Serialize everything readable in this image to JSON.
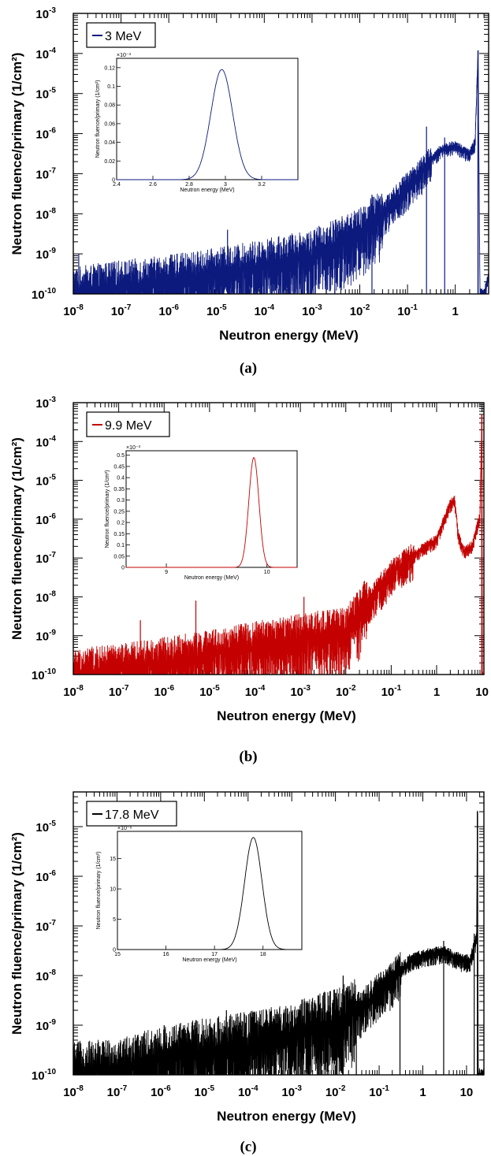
{
  "chart_data": [
    {
      "type": "line",
      "caption": "(a)",
      "xlabel": "Neutron energy (MeV)",
      "ylabel": "Neutron fluence/primary (1/cm²)",
      "xscale": "log",
      "yscale": "log",
      "xlim": [
        1e-08,
        5
      ],
      "ylim": [
        1e-10,
        0.001
      ],
      "x_tick_labels": [
        {
          "base": "10",
          "exp": "-8",
          "value": 1e-08
        },
        {
          "base": "10",
          "exp": "-7",
          "value": 1e-07
        },
        {
          "base": "10",
          "exp": "-6",
          "value": 1e-06
        },
        {
          "base": "10",
          "exp": "-5",
          "value": 1e-05
        },
        {
          "base": "10",
          "exp": "-4",
          "value": 0.0001
        },
        {
          "base": "10",
          "exp": "-3",
          "value": 0.001
        },
        {
          "base": "10",
          "exp": "-2",
          "value": 0.01
        },
        {
          "base": "10",
          "exp": "-1",
          "value": 0.1
        },
        {
          "base": "1",
          "exp": "",
          "value": 1
        }
      ],
      "y_tick_labels": [
        {
          "base": "10",
          "exp": "-10",
          "value": 1e-10
        },
        {
          "base": "10",
          "exp": "-9",
          "value": 1e-09
        },
        {
          "base": "10",
          "exp": "-8",
          "value": 1e-08
        },
        {
          "base": "10",
          "exp": "-7",
          "value": 1e-07
        },
        {
          "base": "10",
          "exp": "-6",
          "value": 1e-06
        },
        {
          "base": "10",
          "exp": "-5",
          "value": 1e-05
        },
        {
          "base": "10",
          "exp": "-4",
          "value": 0.0001
        },
        {
          "base": "10",
          "exp": "-3",
          "value": 0.001
        }
      ],
      "legend": {
        "position": "top-left"
      },
      "series": [
        {
          "name": "3 MeV",
          "color": "#0c1a7e",
          "x": [
            1e-08,
            1e-07,
            1e-06,
            1e-05,
            0.0001,
            0.001,
            0.01,
            0.03,
            0.1,
            0.5,
            1,
            2,
            2.6,
            3,
            3.3,
            4,
            5
          ],
          "y": [
            1e-10,
            1.5e-10,
            2e-10,
            3e-10,
            5e-10,
            9e-10,
            3e-09,
            1e-08,
            5e-08,
            4e-07,
            5e-07,
            3e-07,
            6e-07,
            0.00012,
            1e-10,
            1e-10,
            3e-10
          ],
          "spikes": [
            [
              1.3e-08,
              1e-09
            ],
            [
              1.2e-07,
              6e-10
            ],
            [
              1.5e-06,
              1e-09
            ],
            [
              1.7e-05,
              4e-09
            ],
            [
              0.0005,
              1e-09
            ],
            [
              0.003,
              4e-09
            ],
            [
              0.018,
              3e-08
            ],
            [
              0.25,
              1.5e-06
            ],
            [
              0.6,
              8e-07
            ]
          ]
        }
      ],
      "inset": {
        "xlabel": "Neutron energy (MeV)",
        "ylabel": "Neutron fluence/primary (1/cm²)",
        "multiplier": "×10⁻³",
        "xlim": [
          2.4,
          3.4
        ],
        "ylim": [
          0,
          0.13
        ],
        "x_ticks": [
          "2.4",
          "2.6",
          "2.8",
          "3",
          "3.2"
        ],
        "x_tick_values": [
          2.4,
          2.6,
          2.8,
          3.0,
          3.2
        ],
        "y_ticks": [
          "0",
          "0.02",
          "0.04",
          "0.06",
          "0.08",
          "0.1",
          "0.12"
        ],
        "y_tick_values": [
          0,
          0.02,
          0.04,
          0.06,
          0.08,
          0.1,
          0.12
        ],
        "peak_center": 2.98,
        "peak_height": 0.118,
        "peak_sigma": 0.06
      }
    },
    {
      "type": "line",
      "caption": "(b)",
      "xlabel": "Neutron energy (MeV)",
      "ylabel": "Neutron fluence/primary (1/cm²)",
      "xscale": "log",
      "yscale": "log",
      "xlim": [
        1e-08,
        11
      ],
      "ylim": [
        1e-10,
        0.001
      ],
      "x_tick_labels": [
        {
          "base": "10",
          "exp": "-8",
          "value": 1e-08
        },
        {
          "base": "10",
          "exp": "-7",
          "value": 1e-07
        },
        {
          "base": "10",
          "exp": "-6",
          "value": 1e-06
        },
        {
          "base": "10",
          "exp": "-5",
          "value": 1e-05
        },
        {
          "base": "10",
          "exp": "-4",
          "value": 0.0001
        },
        {
          "base": "10",
          "exp": "-3",
          "value": 0.001
        },
        {
          "base": "10",
          "exp": "-2",
          "value": 0.01
        },
        {
          "base": "10",
          "exp": "-1",
          "value": 0.1
        },
        {
          "base": "1",
          "exp": "",
          "value": 1
        },
        {
          "base": "10",
          "exp": "",
          "value": 10
        }
      ],
      "y_tick_labels": [
        {
          "base": "10",
          "exp": "-10",
          "value": 1e-10
        },
        {
          "base": "10",
          "exp": "-9",
          "value": 1e-09
        },
        {
          "base": "10",
          "exp": "-8",
          "value": 1e-08
        },
        {
          "base": "10",
          "exp": "-7",
          "value": 1e-07
        },
        {
          "base": "10",
          "exp": "-6",
          "value": 1e-06
        },
        {
          "base": "10",
          "exp": "-5",
          "value": 1e-05
        },
        {
          "base": "10",
          "exp": "-4",
          "value": 0.0001
        },
        {
          "base": "10",
          "exp": "-3",
          "value": 0.001
        }
      ],
      "legend": {
        "position": "top-left"
      },
      "series": [
        {
          "name": "9.9 MeV",
          "color": "#c40000",
          "x": [
            1e-08,
            1e-07,
            1e-06,
            1e-05,
            0.0001,
            0.001,
            0.01,
            0.03,
            0.1,
            0.5,
            1,
            2,
            2.5,
            3,
            4,
            6,
            9,
            9.9,
            10.2,
            11
          ],
          "y": [
            1e-10,
            1.3e-10,
            2e-10,
            3e-10,
            5e-10,
            8e-10,
            1.2e-09,
            7e-09,
            4e-08,
            1.8e-07,
            3e-07,
            2.5e-06,
            3e-06,
            4e-07,
            1.5e-07,
            2e-07,
            1.2e-06,
            0.0005,
            1e-10,
            1e-10
          ],
          "spikes": [
            [
              3e-07,
              2.5e-09
            ],
            [
              5e-06,
              8e-09
            ],
            [
              0.0012,
              1e-08
            ],
            [
              0.001,
              3e-09
            ]
          ]
        }
      ],
      "inset": {
        "xlabel": "Neutron energy (MeV)",
        "ylabel": "Neutron fluence/primary (1/cm²)",
        "multiplier": "×10⁻³",
        "xlim": [
          8.6,
          10.3
        ],
        "ylim": [
          0,
          0.52
        ],
        "x_ticks": [
          "9",
          "10"
        ],
        "x_tick_values": [
          9,
          10
        ],
        "y_ticks": [
          "0",
          "0.05",
          "0.1",
          "0.15",
          "0.2",
          "0.25",
          "0.3",
          "0.35",
          "0.4",
          "0.45",
          "0.5"
        ],
        "y_tick_values": [
          0,
          0.05,
          0.1,
          0.15,
          0.2,
          0.25,
          0.3,
          0.35,
          0.4,
          0.45,
          0.5
        ],
        "peak_center": 9.87,
        "peak_height": 0.49,
        "peak_sigma": 0.05
      }
    },
    {
      "type": "line",
      "caption": "(c)",
      "xlabel": "Neutron energy (MeV)",
      "ylabel": "Neutron fluence/primary (1/cm²)",
      "xscale": "log",
      "yscale": "log",
      "xlim": [
        1e-08,
        25
      ],
      "ylim": [
        1e-10,
        5e-05
      ],
      "x_tick_labels": [
        {
          "base": "10",
          "exp": "-8",
          "value": 1e-08
        },
        {
          "base": "10",
          "exp": "-7",
          "value": 1e-07
        },
        {
          "base": "10",
          "exp": "-6",
          "value": 1e-06
        },
        {
          "base": "10",
          "exp": "-5",
          "value": 1e-05
        },
        {
          "base": "10",
          "exp": "-4",
          "value": 0.0001
        },
        {
          "base": "10",
          "exp": "-3",
          "value": 0.001
        },
        {
          "base": "10",
          "exp": "-2",
          "value": 0.01
        },
        {
          "base": "10",
          "exp": "-1",
          "value": 0.1
        },
        {
          "base": "1",
          "exp": "",
          "value": 1
        },
        {
          "base": "10",
          "exp": "",
          "value": 10
        }
      ],
      "y_tick_labels": [
        {
          "base": "10",
          "exp": "-10",
          "value": 1e-10
        },
        {
          "base": "10",
          "exp": "-9",
          "value": 1e-09
        },
        {
          "base": "10",
          "exp": "-8",
          "value": 1e-08
        },
        {
          "base": "10",
          "exp": "-7",
          "value": 1e-07
        },
        {
          "base": "10",
          "exp": "-6",
          "value": 1e-06
        },
        {
          "base": "10",
          "exp": "-5",
          "value": 1e-05
        }
      ],
      "legend": {
        "position": "top-left"
      },
      "series": [
        {
          "name": "17.8 MeV",
          "color": "#000000",
          "x": [
            1e-08,
            1e-07,
            1e-06,
            1e-05,
            0.0001,
            0.001,
            0.01,
            0.03,
            0.1,
            0.5,
            1,
            3,
            8,
            12,
            15,
            17,
            17.8,
            18.5,
            25
          ],
          "y": [
            1e-10,
            1.2e-10,
            2e-10,
            3e-10,
            4e-10,
            6e-10,
            1.2e-09,
            2e-09,
            5e-09,
            2e-08,
            2.5e-08,
            3e-08,
            2e-08,
            2e-08,
            4e-08,
            6e-08,
            2e-05,
            1e-10,
            1e-10
          ],
          "spikes": [
            [
              1e-08,
              3.5e-10
            ],
            [
              1.2e-06,
              1e-09
            ],
            [
              3.2e-05,
              2e-09
            ],
            [
              0.004,
              4e-09
            ],
            [
              0.015,
              1e-08
            ],
            [
              0.03,
              3e-09
            ],
            [
              0.3,
              2e-08
            ],
            [
              3,
              5e-08
            ],
            [
              15,
              7e-08
            ]
          ]
        }
      ],
      "inset": {
        "xlabel": "Neutron energy (MeV)",
        "ylabel": "Neutron fluence/primary (1/cm²)",
        "multiplier": "×10⁻⁶",
        "xlim": [
          15,
          18.8
        ],
        "ylim": [
          0,
          19.5
        ],
        "x_ticks": [
          "15",
          "16",
          "17",
          "18"
        ],
        "x_tick_values": [
          15,
          16,
          17,
          18
        ],
        "y_ticks": [
          "0",
          "5",
          "10",
          "15"
        ],
        "y_tick_values": [
          0,
          5,
          10,
          15
        ],
        "peak_center": 17.8,
        "peak_height": 18.5,
        "peak_sigma": 0.18
      }
    }
  ]
}
